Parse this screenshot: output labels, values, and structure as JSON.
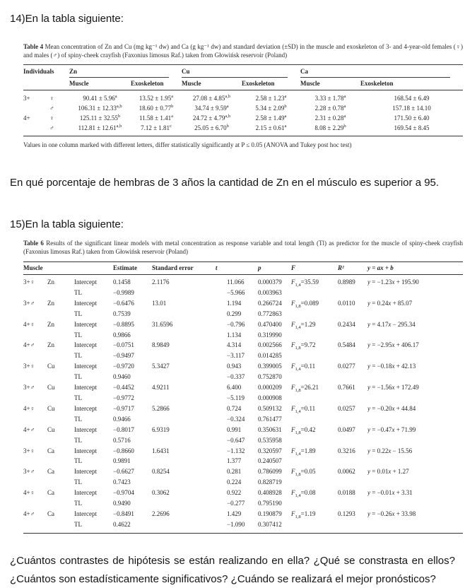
{
  "questions": {
    "q14_heading": "14)En la tabla siguiente:",
    "q14_body": "En qué porcentaje de hembras de 3 años la cantidad de Zn en el músculo es superior a 95.",
    "q15_heading": "15)En la tabla siguiente:",
    "final_line1": "¿Cuántos contrastes de hipótesis se están realizando en ella? ¿Qué se constrasta en ellos?",
    "final_line2": "¿Cuántos son estadísticamente significativos? ¿Cuándo se realizará el mejor pronósticos?"
  },
  "table4": {
    "caption_label": "Table 4",
    "caption_text": " Mean concentration of Zn and Cu (mg kg⁻¹ dw) and Ca (g kg⁻¹ dw) and standard deviation (±SD) in the muscle and exoskeleton of 3- and 4-year-old females (♀) and males (♂) of spiny-cheek crayfish (Faxonius limosus Raf.) taken from Głowińsk reservoir (Poland)",
    "header_individuals": "Individuals",
    "metal_groups": [
      "Zn",
      "Cu",
      "Ca"
    ],
    "tissue_headers": [
      "Muscle",
      "Exoskeleton"
    ],
    "rows": [
      {
        "age": "3+",
        "sex": "♀",
        "cells": [
          {
            "v": "90.41 ± 5.96",
            "s": "a"
          },
          {
            "v": "13.52 ± 1.95",
            "s": "a"
          },
          {
            "v": "27.08 ± 4.85",
            "s": "a,b"
          },
          {
            "v": "2.58 ± 1.23",
            "s": "a"
          },
          {
            "v": "3.33 ± 1.78",
            "s": "a"
          },
          {
            "v": "168.54 ± 6.49",
            "s": ""
          }
        ]
      },
      {
        "age": "",
        "sex": "♂",
        "cells": [
          {
            "v": "106.31 ± 12.33",
            "s": "a,b"
          },
          {
            "v": "18.60 ± 0.77",
            "s": "b"
          },
          {
            "v": "34.74 ± 9.59",
            "s": "a"
          },
          {
            "v": "5.34 ± 2.09",
            "s": "b"
          },
          {
            "v": "2.28 ± 0.78",
            "s": "a"
          },
          {
            "v": "157.18 ± 14.10",
            "s": ""
          }
        ]
      },
      {
        "age": "4+",
        "sex": "♀",
        "cells": [
          {
            "v": "125.11 ± 32.55",
            "s": "b"
          },
          {
            "v": "11.58 ± 1.41",
            "s": "a"
          },
          {
            "v": "24.72 ± 4.79",
            "s": "a,b"
          },
          {
            "v": "2.58 ± 1.49",
            "s": "a"
          },
          {
            "v": "2.31 ± 0.28",
            "s": "a"
          },
          {
            "v": "171.50 ± 6.40",
            "s": ""
          }
        ]
      },
      {
        "age": "",
        "sex": "♂",
        "cells": [
          {
            "v": "112.81 ± 12.61",
            "s": "a,b"
          },
          {
            "v": "7.12 ± 1.81",
            "s": "c"
          },
          {
            "v": "25.05 ± 6.70",
            "s": "b"
          },
          {
            "v": "2.15 ± 0.61",
            "s": "a"
          },
          {
            "v": "8.08 ± 2.29",
            "s": "b"
          },
          {
            "v": "169.54 ± 8.45",
            "s": ""
          }
        ]
      }
    ],
    "footnote": "Values in one column marked with different letters, differ statistically significantly at P ≤ 0.05 (ANOVA and Tukey post hoc test)"
  },
  "table6": {
    "caption_label": "Table 6",
    "caption_text": " Results of the significant linear models with metal concentration as response variable and total length (Tl) as predictor for the muscle of spiny-cheek crayfish (Faxonius limosus Raf.) taken from Głowińsk reservoir (Poland)",
    "headers": {
      "muscle": "Muscle",
      "estimate": "Estimate",
      "se": "Standard error",
      "t": "t",
      "p": "p",
      "f": "F",
      "r2": "R²",
      "eq": "y = ax + b"
    },
    "param_labels": {
      "intercept": "Intercept",
      "tl": "TL"
    },
    "groups": [
      {
        "label": "3+♀",
        "metal": "Zn",
        "intercept": {
          "estimate": "0.1458",
          "se": "2.1176",
          "t": "11.066",
          "p": "0.000379"
        },
        "tl": {
          "estimate": "−0.9989",
          "t": "−5.966",
          "p": "0.003963"
        },
        "f_sub": "1,4",
        "f_val": "35.59",
        "r2": "0.8989",
        "eq": "y = −1.23x + 195.90"
      },
      {
        "label": "3+♂",
        "metal": "Zn",
        "intercept": {
          "estimate": "−0.6476",
          "se": "13.01",
          "t": "1.194",
          "p": "0.266724"
        },
        "tl": {
          "estimate": "0.7539",
          "t": "0.299",
          "p": "0.772863"
        },
        "f_sub": "1,8",
        "f_val": "0.089",
        "r2": "0.0110",
        "eq": "y = 0.24x + 85.07"
      },
      {
        "label": "4+♀",
        "metal": "Zn",
        "intercept": {
          "estimate": "−0.8895",
          "se": "31.6596",
          "t": "−0.796",
          "p": "0.470400"
        },
        "tl": {
          "estimate": "0.9866",
          "t": "1.134",
          "p": "0.319990"
        },
        "f_sub": "1,4",
        "f_val": "1.29",
        "r2": "0.2434",
        "eq": "y = 4.17x − 295.34"
      },
      {
        "label": "4+♂",
        "metal": "Zn",
        "intercept": {
          "estimate": "−0.0751",
          "se": "8.9849",
          "t": "4.314",
          "p": "0.002566"
        },
        "tl": {
          "estimate": "−0.9497",
          "t": "−3.117",
          "p": "0.014285"
        },
        "f_sub": "1,8",
        "f_val": "9.72",
        "r2": "0.5484",
        "eq": "y = −2.95x + 406.17"
      },
      {
        "label": "3+♀",
        "metal": "Cu",
        "intercept": {
          "estimate": "−0.9720",
          "se": "5.3427",
          "t": "0.943",
          "p": "0.399005"
        },
        "tl": {
          "estimate": "0.9460",
          "t": "−0.337",
          "p": "0.752870"
        },
        "f_sub": "1,4",
        "f_val": "0.11",
        "r2": "0.0277",
        "eq": "y = −0.18x + 42.13"
      },
      {
        "label": "3+♂",
        "metal": "Cu",
        "intercept": {
          "estimate": "−0.4452",
          "se": "4.9211",
          "t": "6.400",
          "p": "0.000209"
        },
        "tl": {
          "estimate": "−0.9772",
          "t": "−5.119",
          "p": "0.000908"
        },
        "f_sub": "1,8",
        "f_val": "26.21",
        "r2": "0.7661",
        "eq": "y = −1.56x + 172.49"
      },
      {
        "label": "4+♀",
        "metal": "Cu",
        "intercept": {
          "estimate": "−0.9717",
          "se": "5.2866",
          "t": "0.724",
          "p": "0.509132"
        },
        "tl": {
          "estimate": "0.9466",
          "t": "−0.324",
          "p": "0.761477"
        },
        "f_sub": "1,4",
        "f_val": "0.11",
        "r2": "0.0257",
        "eq": "y = −0.20x + 44.84"
      },
      {
        "label": "4+♂",
        "metal": "Cu",
        "intercept": {
          "estimate": "−0.8017",
          "se": "6.9319",
          "t": "0.991",
          "p": "0.350631"
        },
        "tl": {
          "estimate": "0.5716",
          "t": "−0.647",
          "p": "0.535958"
        },
        "f_sub": "1,8",
        "f_val": "0.42",
        "r2": "0.0497",
        "eq": "y = −0.47x + 71.99"
      },
      {
        "label": "3+♀",
        "metal": "Ca",
        "intercept": {
          "estimate": "−0.8660",
          "se": "1.6431",
          "t": "−1.132",
          "p": "0.320597"
        },
        "tl": {
          "estimate": "0.9891",
          "t": "1.377",
          "p": "0.240507"
        },
        "f_sub": "1,4",
        "f_val": "1.89",
        "r2": "0.3216",
        "eq": "y = 0.22x − 15.56"
      },
      {
        "label": "3+♂",
        "metal": "Ca",
        "intercept": {
          "estimate": "−0.6627",
          "se": "0.8254",
          "t": "0.281",
          "p": "0.786099"
        },
        "tl": {
          "estimate": "0.7423",
          "t": "0.224",
          "p": "0.828719"
        },
        "f_sub": "1,8",
        "f_val": "0.05",
        "r2": "0.0062",
        "eq": "y = 0.01x + 1.27"
      },
      {
        "label": "4+♀",
        "metal": "Ca",
        "intercept": {
          "estimate": "−0.9704",
          "se": "0.3062",
          "t": "0.922",
          "p": "0.408928"
        },
        "tl": {
          "estimate": "0.9490",
          "t": "−0.277",
          "p": "0.795190"
        },
        "f_sub": "1,4",
        "f_val": "0.08",
        "r2": "0.0188",
        "eq": "y = −0.01x + 3.31"
      },
      {
        "label": "4+♂",
        "metal": "Ca",
        "intercept": {
          "estimate": "−0.8491",
          "se": "2.2696",
          "t": "1.429",
          "p": "0.190879"
        },
        "tl": {
          "estimate": "0.4622",
          "t": "−1.090",
          "p": "0.307412"
        },
        "f_sub": "1,8",
        "f_val": "1.19",
        "r2": "0.1293",
        "eq": "y = −0.26x + 33.98"
      }
    ]
  }
}
